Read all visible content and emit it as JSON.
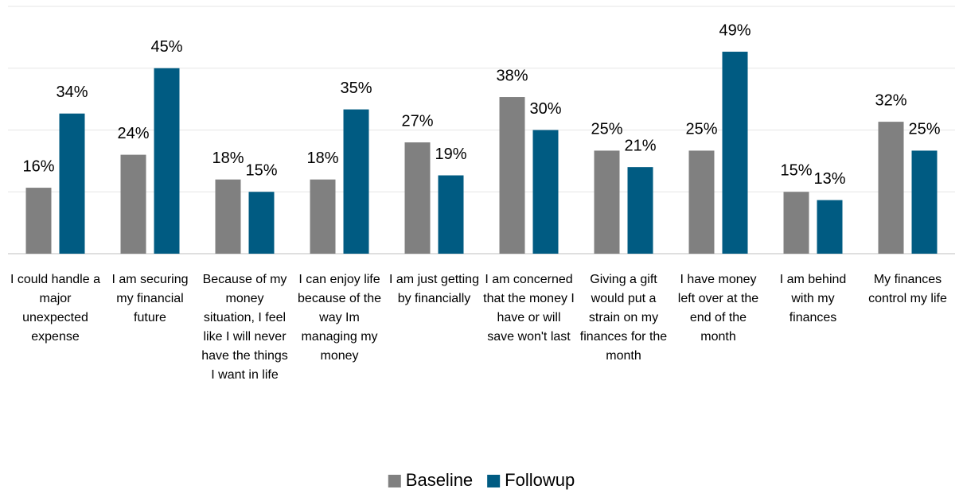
{
  "chart_data": {
    "type": "bar",
    "categories": [
      "I could handle a major unexpected expense",
      "I am securing my financial future",
      "Because of my money situation, I feel like I will never have the things I want in life",
      "I can enjoy life because of the way Im managing my money",
      "I am just getting by financially",
      "I am concerned that the money I have or will save won't last",
      "Giving a gift would put a strain on my finances for the month",
      "I have money left over at the end of the month",
      "I am behind with my finances",
      "My finances control my life"
    ],
    "series": [
      {
        "name": "Baseline",
        "color": "#808080",
        "values": [
          16,
          24,
          18,
          18,
          27,
          38,
          25,
          25,
          15,
          32
        ],
        "value_labels": [
          "16%",
          "24%",
          "18%",
          "18%",
          "27%",
          "38%",
          "25%",
          "25%",
          "15%",
          "32%"
        ]
      },
      {
        "name": "Followup",
        "color": "#005b82",
        "values": [
          34,
          45,
          15,
          35,
          19,
          30,
          21,
          49,
          13,
          25
        ],
        "value_labels": [
          "34%",
          "45%",
          "15%",
          "35%",
          "19%",
          "30%",
          "21%",
          "49%",
          "13%",
          "25%"
        ]
      }
    ],
    "ylim": [
      0,
      60
    ],
    "yticks": [
      0,
      15,
      30,
      45,
      60
    ],
    "grid": true,
    "legend": "bottom"
  }
}
